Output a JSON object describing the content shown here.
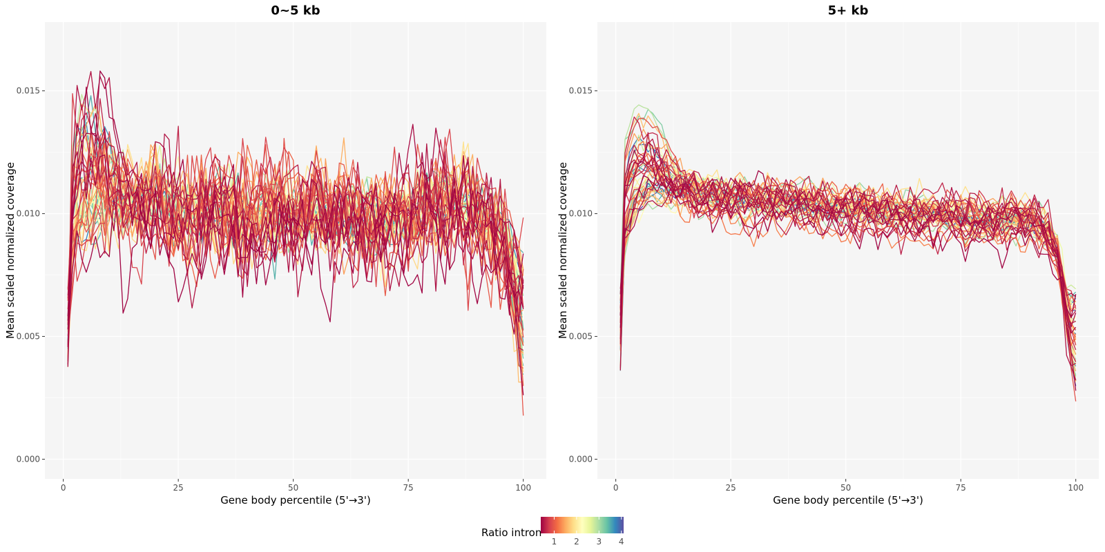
{
  "chart_data": [
    {
      "type": "line",
      "title": "0~5 kb",
      "xlabel": "Gene body percentile (5'→3')",
      "ylabel": "Mean scaled normalized coverage",
      "xlim": [
        -4,
        105
      ],
      "ylim": [
        -0.0008,
        0.0178
      ],
      "x_ticks": [
        0,
        25,
        50,
        75,
        100
      ],
      "x_tick_labels": [
        "0",
        "25",
        "50",
        "75",
        "100"
      ],
      "y_ticks": [
        0,
        0.005,
        0.01,
        0.015
      ],
      "y_tick_labels": [
        "0.000",
        "0.005",
        "0.010",
        "0.015"
      ],
      "grid": true,
      "background": "#f5f5f5",
      "num_series": 50,
      "x": "percentiles 1..100",
      "profile": {
        "anchors_x": [
          1,
          2,
          3,
          5,
          8,
          12,
          16,
          20,
          22,
          25,
          30,
          35,
          40,
          45,
          50,
          55,
          60,
          65,
          70,
          75,
          80,
          85,
          88,
          90,
          95,
          98,
          100
        ],
        "anchors_y": [
          0.005,
          0.0085,
          0.0095,
          0.01,
          0.0102,
          0.0103,
          0.0104,
          0.0106,
          0.0104,
          0.0098,
          0.01,
          0.0102,
          0.0099,
          0.0101,
          0.01,
          0.01,
          0.0098,
          0.0098,
          0.0097,
          0.0098,
          0.0104,
          0.0106,
          0.0104,
          0.0098,
          0.0092,
          0.0088,
          0.0075
        ],
        "early_peak_range": [
          0.0115,
          0.0155
        ],
        "end_value_range": [
          0.0029,
          0.0086
        ],
        "noise_sd": 0.00075
      }
    },
    {
      "type": "line",
      "title": "5+ kb",
      "xlabel": "Gene body percentile (5'→3')",
      "ylabel": "Mean scaled normalized coverage",
      "xlim": [
        -4,
        105
      ],
      "ylim": [
        -0.0008,
        0.0178
      ],
      "x_ticks": [
        0,
        25,
        50,
        75,
        100
      ],
      "x_tick_labels": [
        "0",
        "25",
        "50",
        "75",
        "100"
      ],
      "y_ticks": [
        0,
        0.005,
        0.01,
        0.015
      ],
      "y_tick_labels": [
        "0.000",
        "0.005",
        "0.010",
        "0.015"
      ],
      "grid": true,
      "background": "#f5f5f5",
      "num_series": 50,
      "x": "percentiles 1..100",
      "profile": {
        "anchors_x": [
          1,
          2,
          4,
          7,
          10,
          15,
          20,
          25,
          30,
          35,
          40,
          45,
          50,
          55,
          60,
          65,
          70,
          75,
          80,
          85,
          90,
          94,
          97,
          99,
          100
        ],
        "anchors_y": [
          0.006,
          0.009,
          0.0103,
          0.0108,
          0.0109,
          0.0109,
          0.0107,
          0.0106,
          0.0105,
          0.0105,
          0.0104,
          0.0103,
          0.0102,
          0.0101,
          0.01,
          0.01,
          0.0099,
          0.0098,
          0.0097,
          0.0097,
          0.0097,
          0.0092,
          0.008,
          0.006,
          0.0045
        ],
        "early_peak_range": [
          0.0115,
          0.015
        ],
        "end_value_range": [
          0.0027,
          0.0068
        ],
        "noise_sd": 0.00025
      }
    }
  ],
  "legend": {
    "title": "Ratio intron",
    "ticks": [
      "1",
      "2",
      "3",
      "4"
    ],
    "range": [
      0.4,
      4.1
    ],
    "palette": [
      "#9e0142",
      "#d53e4f",
      "#f46d43",
      "#fdae61",
      "#fee08b",
      "#ffffbf",
      "#e6f598",
      "#abdda4",
      "#66c2a5",
      "#3288bd",
      "#5e4fa2"
    ]
  }
}
